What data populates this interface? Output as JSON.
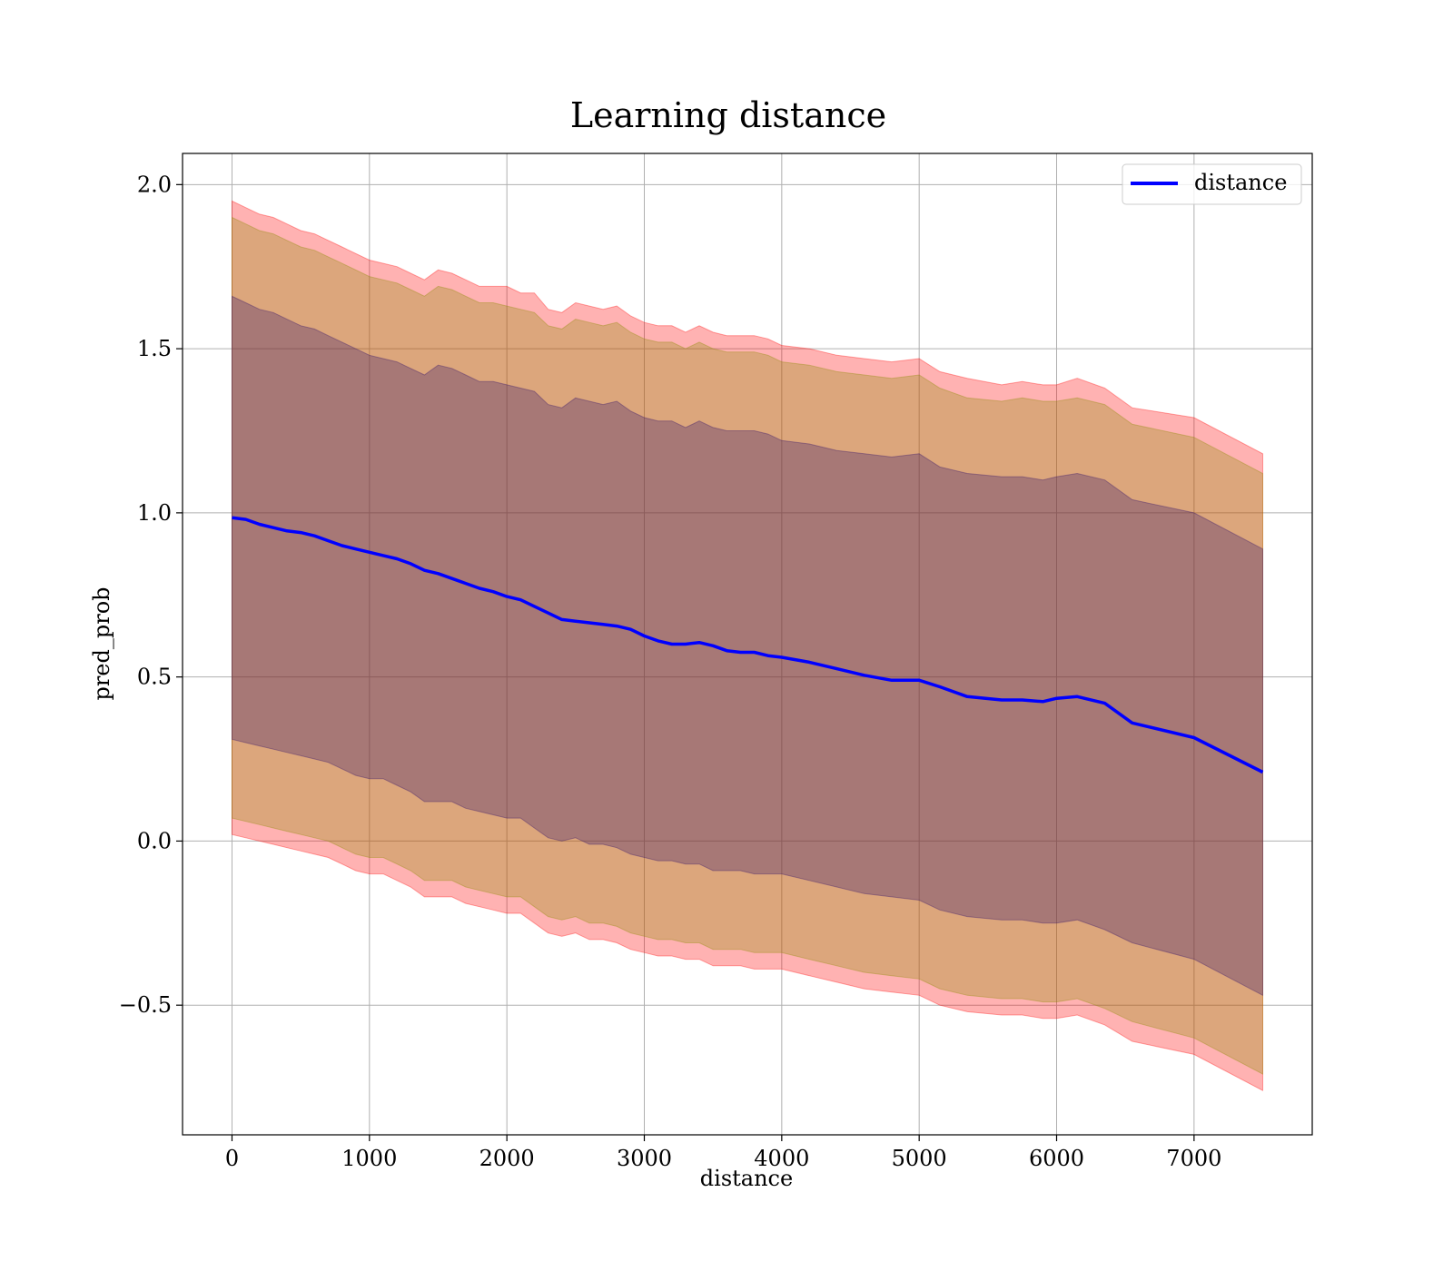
{
  "chart_data": {
    "type": "line",
    "title": "Learning distance",
    "xlabel": "distance",
    "ylabel": "pred_prob",
    "xlim": [
      -360,
      7860
    ],
    "ylim": [
      -0.895,
      2.095
    ],
    "xticks": [
      0,
      1000,
      2000,
      3000,
      4000,
      5000,
      6000,
      7000
    ],
    "xtick_labels": [
      "0",
      "1000",
      "2000",
      "3000",
      "4000",
      "5000",
      "6000",
      "7000"
    ],
    "yticks": [
      -0.5,
      0.0,
      0.5,
      1.0,
      1.5,
      2.0
    ],
    "ytick_labels": [
      "−0.5",
      "0.0",
      "0.5",
      "1.0",
      "1.5",
      "2.0"
    ],
    "grid": true,
    "legend": {
      "position": "top-right",
      "entries": [
        "distance"
      ]
    },
    "colors": {
      "line": "#0000ff",
      "outer_band": "#ff0000",
      "middle_band": "#8b8b00",
      "inner_band": "#2e0e6a",
      "grid": "#b0b0b0",
      "frame": "#000000"
    },
    "x": [
      0,
      100,
      200,
      300,
      400,
      500,
      600,
      700,
      800,
      900,
      1000,
      1100,
      1200,
      1300,
      1400,
      1500,
      1600,
      1700,
      1800,
      1900,
      2000,
      2100,
      2200,
      2300,
      2400,
      2500,
      2600,
      2700,
      2800,
      2900,
      3000,
      3100,
      3200,
      3300,
      3400,
      3500,
      3600,
      3700,
      3800,
      3900,
      4000,
      4200,
      4400,
      4600,
      4800,
      5000,
      5150,
      5350,
      5600,
      5750,
      5900,
      6000,
      6150,
      6350,
      6550,
      7000,
      7500
    ],
    "series": [
      {
        "name": "distance",
        "values": [
          0.985,
          0.98,
          0.965,
          0.955,
          0.945,
          0.94,
          0.93,
          0.915,
          0.9,
          0.89,
          0.88,
          0.87,
          0.86,
          0.845,
          0.825,
          0.815,
          0.8,
          0.785,
          0.77,
          0.76,
          0.745,
          0.735,
          0.715,
          0.695,
          0.675,
          0.67,
          0.665,
          0.66,
          0.655,
          0.645,
          0.625,
          0.61,
          0.6,
          0.6,
          0.605,
          0.595,
          0.58,
          0.575,
          0.575,
          0.565,
          0.56,
          0.545,
          0.525,
          0.505,
          0.49,
          0.49,
          0.47,
          0.44,
          0.43,
          0.43,
          0.425,
          0.435,
          0.44,
          0.42,
          0.36,
          0.315,
          0.21
        ]
      }
    ],
    "bands": [
      {
        "name": "outer",
        "upper": [
          1.95,
          1.93,
          1.91,
          1.9,
          1.88,
          1.86,
          1.85,
          1.83,
          1.81,
          1.79,
          1.77,
          1.76,
          1.75,
          1.73,
          1.71,
          1.74,
          1.73,
          1.71,
          1.69,
          1.69,
          1.69,
          1.67,
          1.67,
          1.62,
          1.61,
          1.64,
          1.63,
          1.62,
          1.63,
          1.6,
          1.58,
          1.57,
          1.57,
          1.55,
          1.57,
          1.55,
          1.54,
          1.54,
          1.54,
          1.53,
          1.51,
          1.5,
          1.48,
          1.47,
          1.46,
          1.47,
          1.43,
          1.41,
          1.39,
          1.4,
          1.39,
          1.39,
          1.41,
          1.38,
          1.32,
          1.29,
          1.18
        ],
        "lower": [
          0.02,
          0.01,
          0.0,
          -0.01,
          -0.02,
          -0.03,
          -0.04,
          -0.05,
          -0.07,
          -0.09,
          -0.1,
          -0.1,
          -0.12,
          -0.14,
          -0.17,
          -0.17,
          -0.17,
          -0.19,
          -0.2,
          -0.21,
          -0.22,
          -0.22,
          -0.25,
          -0.28,
          -0.29,
          -0.28,
          -0.3,
          -0.3,
          -0.31,
          -0.33,
          -0.34,
          -0.35,
          -0.35,
          -0.36,
          -0.36,
          -0.38,
          -0.38,
          -0.38,
          -0.39,
          -0.39,
          -0.39,
          -0.41,
          -0.43,
          -0.45,
          -0.46,
          -0.47,
          -0.5,
          -0.52,
          -0.53,
          -0.53,
          -0.54,
          -0.54,
          -0.53,
          -0.56,
          -0.61,
          -0.65,
          -0.76
        ]
      },
      {
        "name": "middle",
        "upper": [
          1.9,
          1.88,
          1.86,
          1.85,
          1.83,
          1.81,
          1.8,
          1.78,
          1.76,
          1.74,
          1.72,
          1.71,
          1.7,
          1.68,
          1.66,
          1.69,
          1.68,
          1.66,
          1.64,
          1.64,
          1.63,
          1.62,
          1.61,
          1.57,
          1.56,
          1.59,
          1.58,
          1.57,
          1.58,
          1.55,
          1.53,
          1.52,
          1.52,
          1.5,
          1.52,
          1.5,
          1.49,
          1.49,
          1.49,
          1.48,
          1.46,
          1.45,
          1.43,
          1.42,
          1.41,
          1.42,
          1.38,
          1.35,
          1.34,
          1.35,
          1.34,
          1.34,
          1.35,
          1.33,
          1.27,
          1.23,
          1.12
        ],
        "lower": [
          0.07,
          0.06,
          0.05,
          0.04,
          0.03,
          0.02,
          0.01,
          0.0,
          -0.02,
          -0.04,
          -0.05,
          -0.05,
          -0.07,
          -0.09,
          -0.12,
          -0.12,
          -0.12,
          -0.14,
          -0.15,
          -0.16,
          -0.17,
          -0.17,
          -0.2,
          -0.23,
          -0.24,
          -0.23,
          -0.25,
          -0.25,
          -0.26,
          -0.28,
          -0.29,
          -0.3,
          -0.3,
          -0.31,
          -0.31,
          -0.33,
          -0.33,
          -0.33,
          -0.34,
          -0.34,
          -0.34,
          -0.36,
          -0.38,
          -0.4,
          -0.41,
          -0.42,
          -0.45,
          -0.47,
          -0.48,
          -0.48,
          -0.49,
          -0.49,
          -0.48,
          -0.51,
          -0.55,
          -0.6,
          -0.71
        ]
      },
      {
        "name": "inner",
        "upper": [
          1.66,
          1.64,
          1.62,
          1.61,
          1.59,
          1.57,
          1.56,
          1.54,
          1.52,
          1.5,
          1.48,
          1.47,
          1.46,
          1.44,
          1.42,
          1.45,
          1.44,
          1.42,
          1.4,
          1.4,
          1.39,
          1.38,
          1.37,
          1.33,
          1.32,
          1.35,
          1.34,
          1.33,
          1.34,
          1.31,
          1.29,
          1.28,
          1.28,
          1.26,
          1.28,
          1.26,
          1.25,
          1.25,
          1.25,
          1.24,
          1.22,
          1.21,
          1.19,
          1.18,
          1.17,
          1.18,
          1.14,
          1.12,
          1.11,
          1.11,
          1.1,
          1.11,
          1.12,
          1.1,
          1.04,
          1.0,
          0.89
        ],
        "lower": [
          0.31,
          0.3,
          0.29,
          0.28,
          0.27,
          0.26,
          0.25,
          0.24,
          0.22,
          0.2,
          0.19,
          0.19,
          0.17,
          0.15,
          0.12,
          0.12,
          0.12,
          0.1,
          0.09,
          0.08,
          0.07,
          0.07,
          0.04,
          0.01,
          0.0,
          0.01,
          -0.01,
          -0.01,
          -0.02,
          -0.04,
          -0.05,
          -0.06,
          -0.06,
          -0.07,
          -0.07,
          -0.09,
          -0.09,
          -0.09,
          -0.1,
          -0.1,
          -0.1,
          -0.12,
          -0.14,
          -0.16,
          -0.17,
          -0.18,
          -0.21,
          -0.23,
          -0.24,
          -0.24,
          -0.25,
          -0.25,
          -0.24,
          -0.27,
          -0.31,
          -0.36,
          -0.47
        ]
      }
    ]
  }
}
